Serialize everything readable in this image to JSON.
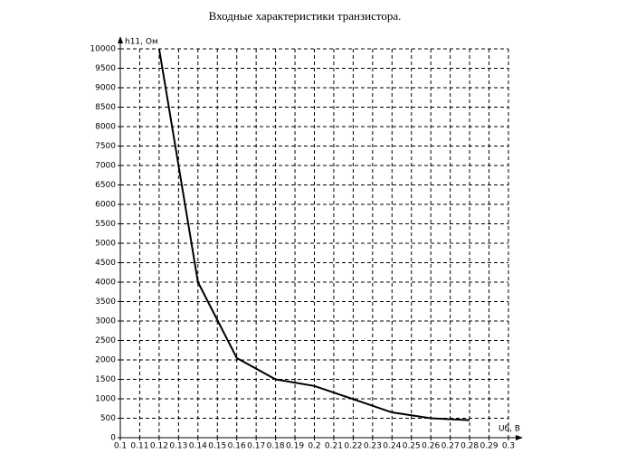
{
  "chart_data": {
    "type": "line",
    "title": "Входные характеристики транзистора.",
    "y_label": "h11, Ом",
    "x_label": "Uб, В",
    "x": [
      0.12,
      0.14,
      0.16,
      0.18,
      0.2,
      0.24,
      0.26,
      0.28
    ],
    "series": [
      {
        "name": "h11",
        "color": "#000000",
        "values": [
          10000,
          4000,
          2050,
          1500,
          1330,
          650,
          500,
          450
        ]
      }
    ],
    "xlim": [
      0.1,
      0.3
    ],
    "xticks": [
      0.1,
      0.11,
      0.12,
      0.13,
      0.14,
      0.15,
      0.16,
      0.17,
      0.18,
      0.19,
      0.2,
      0.21,
      0.22,
      0.23,
      0.24,
      0.25,
      0.26,
      0.27,
      0.28,
      0.29,
      0.3
    ],
    "ylim": [
      0,
      10000
    ],
    "yticks": [
      0,
      500,
      1000,
      1500,
      2000,
      2500,
      3000,
      3500,
      4000,
      4500,
      5000,
      5500,
      6000,
      6500,
      7000,
      7500,
      8000,
      8500,
      9000,
      9500,
      10000
    ],
    "grid": true
  }
}
